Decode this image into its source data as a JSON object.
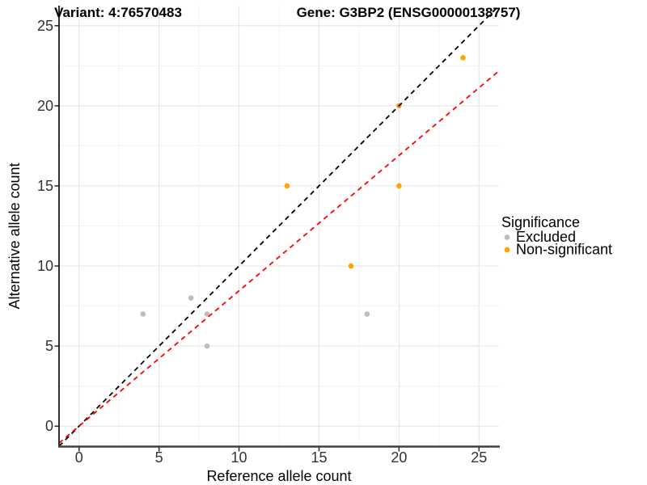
{
  "figure": {
    "title_left": "Variant: 4:76570483",
    "title_right": "Gene: G3BP2 (ENSG00000138757)",
    "background": "#FFFFFF"
  },
  "chart_data": {
    "type": "scatter",
    "xlabel": "Reference allele count",
    "ylabel": "Alternative allele count",
    "xlim": [
      -1.25,
      26.25
    ],
    "ylim": [
      -1.25,
      26.25
    ],
    "x_ticks": [
      0,
      5,
      10,
      15,
      20,
      25
    ],
    "y_ticks": [
      0,
      5,
      10,
      15,
      20,
      25
    ],
    "x_minor_ticks": [
      2.5,
      7.5,
      12.5,
      17.5,
      22.5
    ],
    "y_minor_ticks": [
      2.5,
      7.5,
      12.5,
      17.5,
      22.5
    ],
    "grid": true,
    "series": [
      {
        "name": "Excluded",
        "color": "#BEBEBE",
        "points": [
          [
            4,
            7
          ],
          [
            7,
            8
          ],
          [
            8,
            7
          ],
          [
            8,
            5
          ],
          [
            18,
            7
          ]
        ]
      },
      {
        "name": "Non-significant",
        "color": "#FFA500",
        "points": [
          [
            13,
            15
          ],
          [
            17,
            10
          ],
          [
            20,
            15
          ],
          [
            20,
            20
          ],
          [
            24,
            23
          ]
        ]
      }
    ],
    "lines": [
      {
        "name": "identity-line",
        "slope": 1.0,
        "intercept": 0,
        "color": "#000000",
        "style": "dashed"
      },
      {
        "name": "fitted-ratio-line",
        "slope": 0.845,
        "intercept": 0,
        "color": "#FF0000",
        "style": "dashed"
      }
    ],
    "legend": {
      "title": "Significance",
      "position": "right",
      "entries": [
        {
          "label": "Excluded",
          "color": "#BEBEBE"
        },
        {
          "label": "Non-significant",
          "color": "#FFA500"
        }
      ]
    },
    "style": {
      "grid_major_color": "#E8E8E8",
      "grid_minor_color": "#F3F3F3",
      "axis_line_color": "#333333",
      "tick_color": "#333333",
      "point_radius": 3.3
    }
  }
}
